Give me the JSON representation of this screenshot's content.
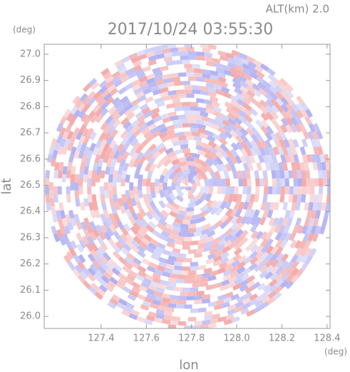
{
  "chart_data": {
    "type": "ppi",
    "title": "2017/10/24 03:55:30",
    "subtitle": "ALT(km) 2.0",
    "x_label": "lon",
    "y_label": "lat",
    "x_unit": "(deg)",
    "y_unit": "(deg)",
    "xlim": [
      127.148,
      128.413
    ],
    "ylim": [
      25.954,
      27.038
    ],
    "xticks": [
      127.4,
      127.6,
      127.8,
      {
        "value": 128.0,
        "label": "128.0"
      },
      128.2,
      128.4
    ],
    "yticks": [
      {
        "value": 26.0,
        "label": "26.0"
      },
      26.1,
      26.2,
      26.3,
      26.4,
      26.5,
      26.6,
      26.7,
      26.8,
      26.9,
      {
        "value": 27.0,
        "label": "27.0"
      }
    ],
    "colors": [
      "#f2a0a0",
      "#a8a8f0"
    ]
  }
}
